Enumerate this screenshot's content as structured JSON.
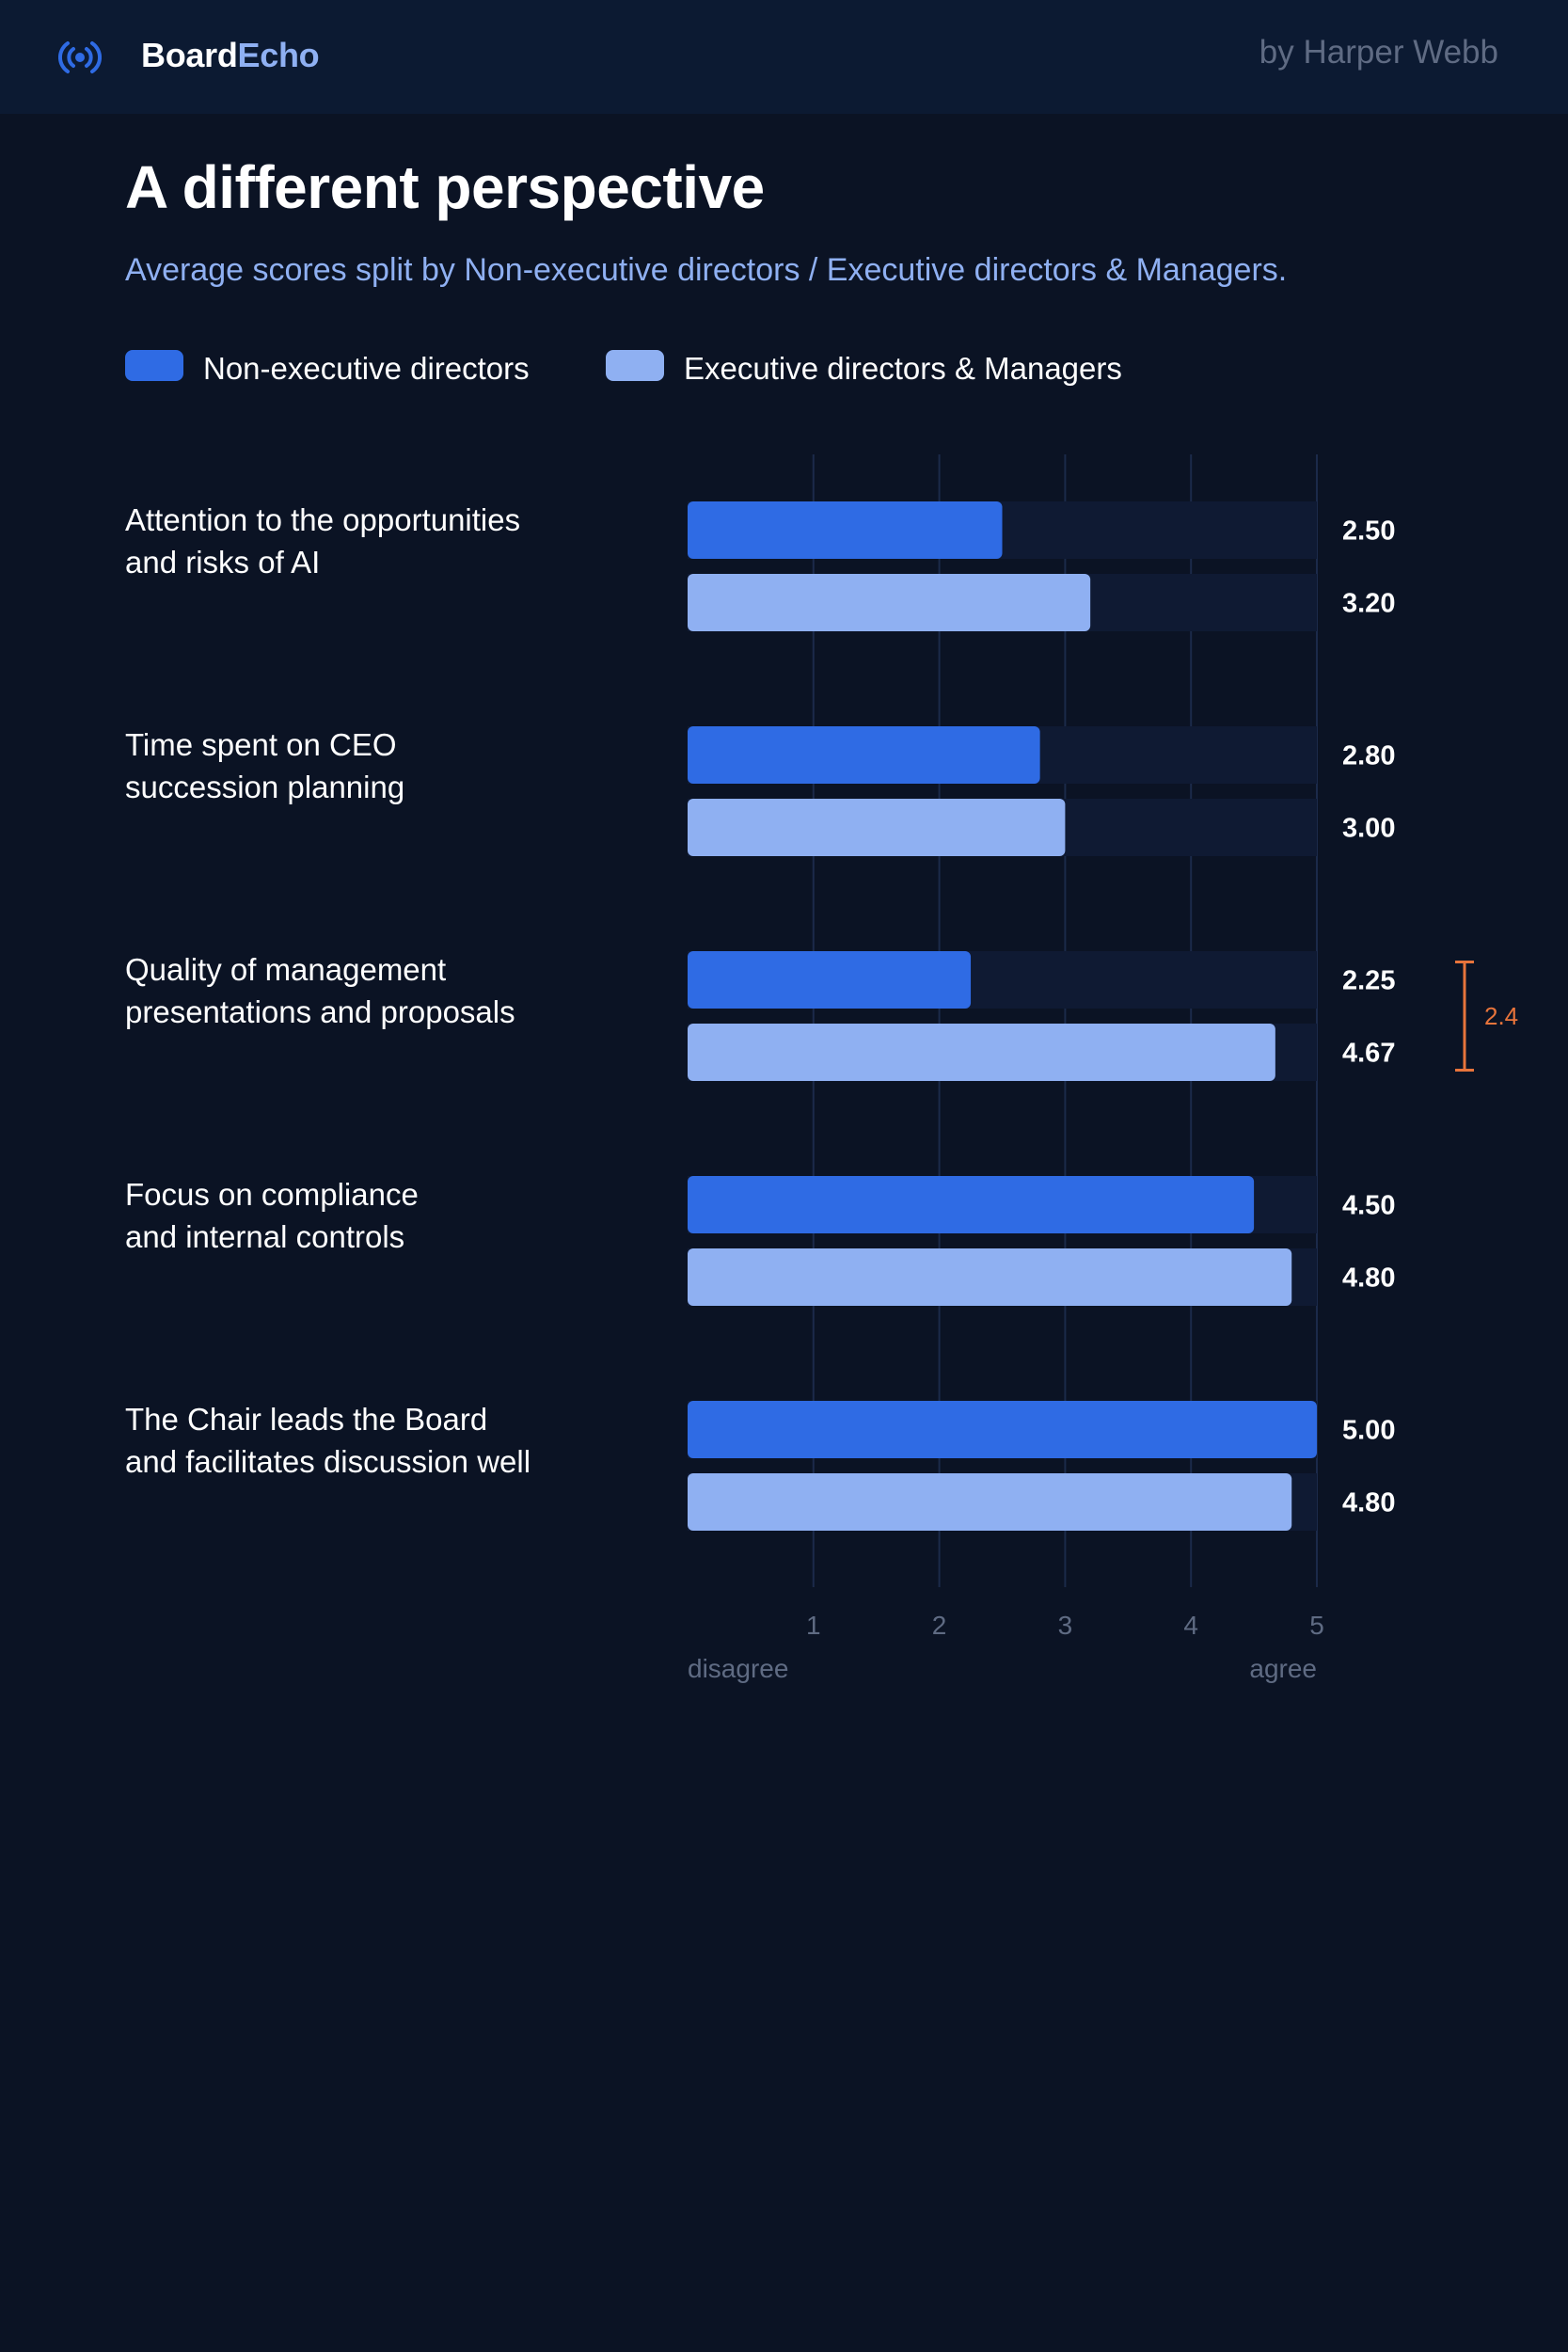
{
  "brand": {
    "name_part1": "Board",
    "name_part2": "Echo",
    "icon": "broadcast-icon"
  },
  "byline": "by Harper Webb",
  "colors": {
    "background": "#0b1324",
    "header": "#0c1a32",
    "non_exec": "#2f6be4",
    "exec": "#8fb0f2",
    "track": "#0f1a33",
    "grid": "#1b2a4a",
    "accent": "#e8743b"
  },
  "chart_data": {
    "type": "bar",
    "orientation": "horizontal",
    "title": "A different perspective",
    "subtitle": "Average scores split by Non-executive directors / Executive directors & Managers.",
    "categories": [
      "Attention to the opportunities and risks of AI",
      "Time spent on CEO succession planning",
      "Quality of management presentations and proposals",
      "Focus on compliance and internal controls",
      "The Chair leads the Board and facilitates discussion well"
    ],
    "category_lines": [
      [
        "Attention to the opportunities",
        "and risks of AI"
      ],
      [
        "Time spent on CEO",
        "succession planning"
      ],
      [
        "Quality of management",
        "presentations and proposals"
      ],
      [
        "Focus on compliance",
        "and internal controls"
      ],
      [
        "The Chair leads the Board",
        "and facilitates discussion well"
      ]
    ],
    "series": [
      {
        "name": "Non-executive directors",
        "values": [
          2.5,
          2.8,
          2.25,
          4.5,
          5.0
        ],
        "labels": [
          "2.50",
          "2.80",
          "2.25",
          "4.50",
          "5.00"
        ]
      },
      {
        "name": "Executive directors & Managers",
        "values": [
          3.2,
          3.0,
          4.67,
          4.8,
          4.8
        ],
        "labels": [
          "3.20",
          "3.00",
          "4.67",
          "4.80",
          "4.80"
        ]
      }
    ],
    "xlim": [
      0,
      5
    ],
    "xticks": [
      1,
      2,
      3,
      4,
      5
    ],
    "xtick_labels": [
      "1",
      "2",
      "3",
      "4",
      "5"
    ],
    "x_low_label": "disagree",
    "x_high_label": "agree",
    "grid": true,
    "legend_position": "top-left",
    "annotations": [
      {
        "category_index": 2,
        "text": "2.4"
      }
    ]
  }
}
